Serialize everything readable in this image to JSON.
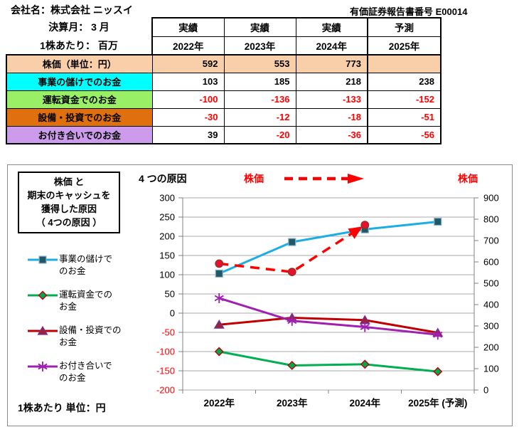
{
  "page": {
    "company": "会社名：株式会社 ニッスイ",
    "report_label": "有価証券報告書番号",
    "report_value": "E00014"
  },
  "table": {
    "fiscal_month": "決算月： 3 月",
    "per_share": "1株あたり： 百万",
    "status_headers": [
      "実績",
      "実績",
      "実績",
      "予測"
    ],
    "year_headers": [
      "2022年",
      "2023年",
      "2024年",
      "2025年"
    ],
    "negative_color": "#FF0000",
    "rows": [
      {
        "label": "株価（単位：円）",
        "color": "#F9CFA9",
        "row_fill": true,
        "values": [
          "592",
          "553",
          "773",
          ""
        ]
      },
      {
        "label": "事業の儲けでのお金",
        "color": "#00FFFF",
        "row_fill": false,
        "values": [
          "103",
          "185",
          "218",
          "238"
        ]
      },
      {
        "label": "運転資金でのお金",
        "color": "#99F066",
        "row_fill": false,
        "values": [
          "-100",
          "-136",
          "-133",
          "-152"
        ]
      },
      {
        "label": "設備・投資でのお金",
        "color": "#E06F0E",
        "row_fill": false,
        "values": [
          "-30",
          "-12",
          "-18",
          "-51"
        ]
      },
      {
        "label": "お付き合いでのお金",
        "color": "#CD9BEC",
        "row_fill": false,
        "values": [
          "39",
          "-20",
          "-36",
          "-56"
        ]
      }
    ]
  },
  "chart": {
    "box_title_lines": [
      "株価 と",
      "期末のキャッシュを",
      "獲得した原因",
      "（ 4つの原因 ）"
    ],
    "subtitle": "4 つの原因",
    "kabuka_label_left": "株価",
    "kabuka_label_right": "株価",
    "footer": "1株あたり  単位：円",
    "arrow_color": "#FF0000",
    "legend": [
      {
        "line1": "事業の儲けで",
        "line2": "のお金"
      },
      {
        "line1": "運転資金での",
        "line2": "お金"
      },
      {
        "line1": "設備・投資での",
        "line2": "お金"
      },
      {
        "line1": "お付き合いで",
        "line2": "のお金"
      }
    ]
  },
  "chart_data": {
    "type": "line",
    "title": "株価 と 期末のキャッシュを獲得した原因（ 4つの原因 ）",
    "categories": [
      "2022年",
      "2023年",
      "2024年",
      "2025年 (予測)"
    ],
    "left_axis": {
      "min": -200,
      "max": 300,
      "step": 50,
      "negative_label_color": "#FF0000",
      "label_color": "#000000"
    },
    "right_axis": {
      "min": 0,
      "max": 900,
      "step": 100,
      "label_color": "#000000"
    },
    "grid": true,
    "grid_color": "#ABABAB",
    "axis_color": "#808080",
    "legend_position": "left",
    "series": [
      {
        "name": "事業の儲けでのお金",
        "axis": "left",
        "values": [
          103,
          185,
          218,
          238
        ],
        "line_color": "#1CADE4",
        "dashed": false,
        "arrow_end": false,
        "marker": "square",
        "marker_fill": "#215868",
        "marker_stroke": "#8DB4C6"
      },
      {
        "name": "運転資金でのお金",
        "axis": "left",
        "values": [
          -100,
          -136,
          -133,
          -152
        ],
        "line_color": "#00B050",
        "dashed": false,
        "arrow_end": false,
        "marker": "diamond",
        "marker_fill": "#00A651",
        "marker_stroke": "#C00000"
      },
      {
        "name": "設備・投資でのお金",
        "axis": "left",
        "values": [
          -30,
          -12,
          -18,
          -51
        ],
        "line_color": "#C00000",
        "dashed": false,
        "arrow_end": false,
        "marker": "triangle",
        "marker_fill": "#9B2335",
        "marker_stroke": "#7030A0"
      },
      {
        "name": "お付き合いでのお金",
        "axis": "left",
        "values": [
          39,
          -20,
          -36,
          -56
        ],
        "line_color": "#A020B0",
        "dashed": false,
        "arrow_end": false,
        "marker": "asterisk",
        "marker_fill": "#A020B0",
        "marker_stroke": "#A020B0"
      },
      {
        "name": "株価",
        "axis": "right",
        "values": [
          592,
          553,
          773,
          null
        ],
        "line_color": "#FF0000",
        "dashed": true,
        "arrow_end": true,
        "marker": "circle",
        "marker_fill": "#E8112D",
        "marker_stroke": "#943126"
      }
    ]
  }
}
